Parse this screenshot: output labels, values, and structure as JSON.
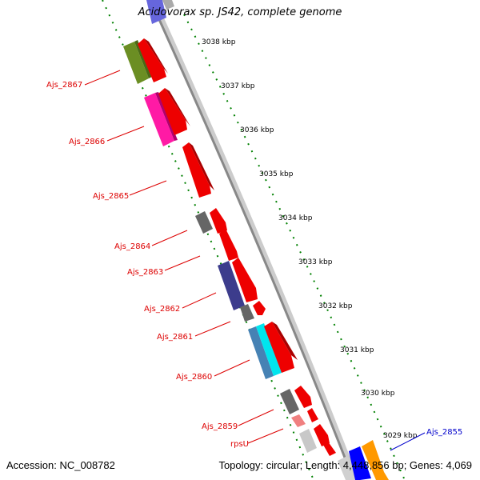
{
  "title": "Acidovorax sp. JS42, complete genome",
  "footer": {
    "accession": "Accession: NC_008782",
    "summary": "Topology: circular; Length: 4,448,856 bp; Genes: 4,069"
  },
  "colors": {
    "label_red": "#dd0000",
    "label_blue": "#0000cc",
    "backbone": "#888888",
    "dotted_track": "#008000",
    "red_gene": "#ee0000"
  },
  "kbp_ticks": [
    "3038 kbp",
    "3037 kbp",
    "3036 kbp",
    "3035 kbp",
    "3034 kbp",
    "3033 kbp",
    "3032 kbp",
    "3031 kbp",
    "3030 kbp",
    "3029 kbp"
  ],
  "gene_labels": [
    {
      "text": "Ajs_2867",
      "color": "red"
    },
    {
      "text": "Ajs_2866",
      "color": "red"
    },
    {
      "text": "Ajs_2865",
      "color": "red"
    },
    {
      "text": "Ajs_2864",
      "color": "red"
    },
    {
      "text": "Ajs_2863",
      "color": "red"
    },
    {
      "text": "Ajs_2862",
      "color": "red"
    },
    {
      "text": "Ajs_2861",
      "color": "red"
    },
    {
      "text": "Ajs_2860",
      "color": "red"
    },
    {
      "text": "Ajs_2859",
      "color": "red"
    },
    {
      "text": "rpsU",
      "color": "red"
    },
    {
      "text": "Ajs_2855",
      "color": "blue"
    }
  ]
}
